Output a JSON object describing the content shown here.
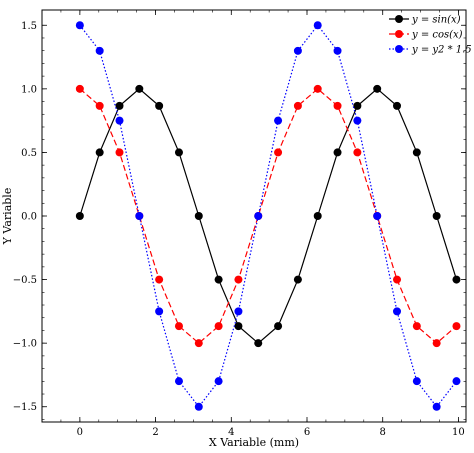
{
  "chart_data": {
    "type": "line",
    "title": "",
    "xlabel": "X Variable (mm)",
    "ylabel": "Y Variable",
    "xlim": [
      -1.0,
      10.2
    ],
    "ylim": [
      -1.62,
      1.62
    ],
    "xticks": [
      0,
      2,
      4,
      6,
      8,
      10
    ],
    "xtick_labels": [
      "0",
      "2",
      "4",
      "6",
      "8",
      "10"
    ],
    "yticks": [
      -1.5,
      -1.0,
      -0.5,
      0.0,
      0.5,
      1.0,
      1.5
    ],
    "ytick_labels": [
      "−1.5",
      "−1.0",
      "−0.5",
      "0.0",
      "0.5",
      "1.0",
      "1.5"
    ],
    "grid": false,
    "legend_position": "top-right",
    "x": [
      0.0,
      0.5236,
      1.0472,
      1.5708,
      2.0944,
      2.618,
      3.1416,
      3.6652,
      4.1888,
      4.7124,
      5.236,
      5.7596,
      6.2832,
      6.8068,
      7.3304,
      7.854,
      8.3776,
      8.9012,
      9.4248,
      9.9484
    ],
    "series": [
      {
        "name": "y = sin(x)",
        "color": "#000000",
        "line_style": "solid",
        "values": [
          0.0,
          0.5,
          0.866,
          1.0,
          0.866,
          0.5,
          0.0,
          -0.5,
          -0.866,
          -1.0,
          -0.866,
          -0.5,
          0.0,
          0.5,
          0.866,
          1.0,
          0.866,
          0.5,
          0.0,
          -0.5
        ]
      },
      {
        "name": "y = cos(x)",
        "color": "#ff0000",
        "line_style": "dashed",
        "values": [
          1.0,
          0.866,
          0.5,
          0.0,
          -0.5,
          -0.866,
          -1.0,
          -0.866,
          -0.5,
          0.0,
          0.5,
          0.866,
          1.0,
          0.866,
          0.5,
          0.0,
          -0.5,
          -0.866,
          -1.0,
          -0.866
        ]
      },
      {
        "name": "y = y2 * 1.5",
        "color": "#0000ff",
        "line_style": "dotted",
        "values": [
          1.5,
          1.299,
          0.75,
          0.0,
          -0.75,
          -1.299,
          -1.5,
          -1.299,
          -0.75,
          0.0,
          0.75,
          1.299,
          1.5,
          1.299,
          0.75,
          0.0,
          -0.75,
          -1.299,
          -1.5,
          -1.299
        ]
      }
    ]
  }
}
